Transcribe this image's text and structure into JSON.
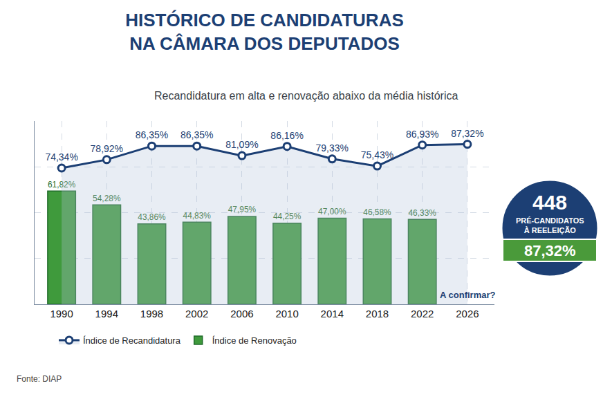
{
  "chart_data": {
    "type": "bar",
    "title": "HISTÓRICO DE CANDIDATURAS\nNA CÂMARA DOS DEPUTADOS",
    "subtitle": "Recandidatura em alta e renovação abaixo da média histórica",
    "source": "Fonte: DIAP",
    "categories": [
      "1990",
      "1994",
      "1998",
      "2002",
      "2006",
      "2010",
      "2014",
      "2018",
      "2022",
      "2026"
    ],
    "series": [
      {
        "name": "Índice de Recandidatura",
        "type": "line",
        "color": "#1c3f74",
        "marker": "circle",
        "line_style": "solid",
        "values": [
          74.34,
          78.92,
          86.35,
          86.35,
          81.09,
          86.16,
          79.33,
          75.43,
          86.93,
          87.32
        ],
        "value_labels": [
          "74,34%",
          "78,92%",
          "86,35%",
          "86,35%",
          "81,09%",
          "86,16%",
          "79,33%",
          "75,43%",
          "86,93%",
          "87,32%"
        ]
      },
      {
        "name": "Índice de Renovação",
        "type": "bar",
        "color": "#3f9a3c",
        "values": [
          61.82,
          54.28,
          43.86,
          44.83,
          47.95,
          44.25,
          47.0,
          46.58,
          46.33,
          null
        ],
        "value_labels": [
          "61,82%",
          "54,28%",
          "43,86%",
          "44,83%",
          "47,95%",
          "44,25%",
          "47,00%",
          "46,58%",
          "46,33%",
          null
        ]
      }
    ],
    "annotations": [
      {
        "text": "A confirmar?",
        "x": "2026"
      }
    ],
    "badge": {
      "value": 448,
      "caption": "PRÉ-CANDIDATOS\nÀ REELEIÇÃO",
      "share_label": "87,32%"
    },
    "ylim": [
      0,
      100
    ],
    "yticks": [
      0,
      25,
      50,
      75,
      100
    ],
    "grid": true,
    "tick_labels": "x",
    "data_labels": true,
    "legend": "bottom"
  }
}
